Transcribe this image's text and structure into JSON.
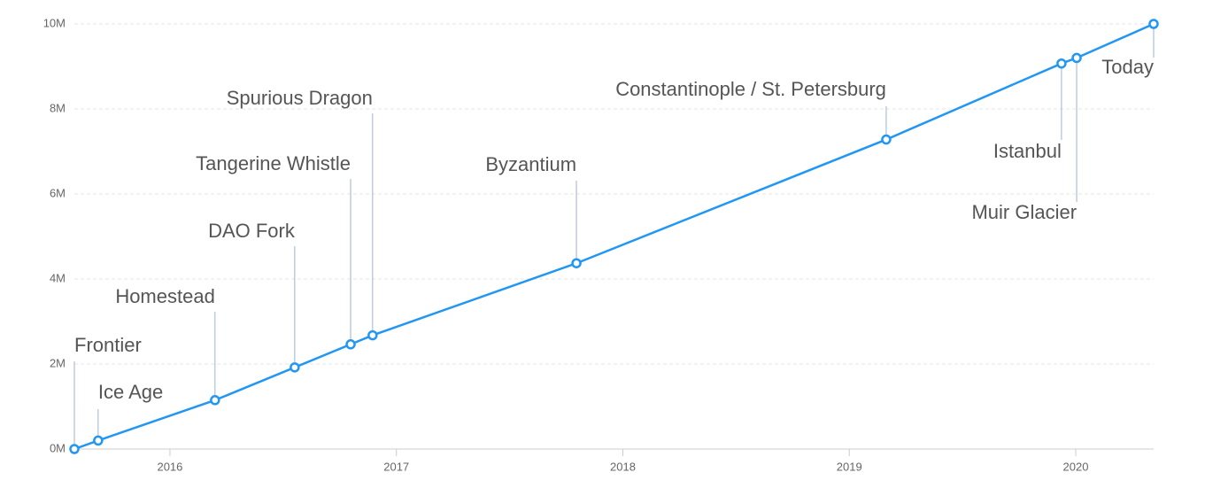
{
  "chart_data": {
    "type": "line",
    "x": [
      2015.578,
      2015.683,
      2016.199,
      2016.551,
      2016.798,
      2016.895,
      2017.795,
      2019.163,
      2019.937,
      2020.004,
      2020.344
    ],
    "values": [
      0,
      200000,
      1150000,
      1920000,
      2463000,
      2675000,
      4370000,
      7280000,
      9069000,
      9200000,
      10000000
    ],
    "point_labels": [
      "Frontier",
      "Ice Age",
      "Homestead",
      "DAO Fork",
      "Tangerine Whistle",
      "Spurious Dragon",
      "Byzantium",
      "Constantinople / St. Petersburg",
      "Istanbul",
      "Muir Glacier",
      "Today"
    ],
    "color": "#2196f3",
    "xlim": [
      2015.578,
      2020.344
    ],
    "xticks": [
      2016,
      2017,
      2018,
      2019,
      2020
    ],
    "ylim": [
      0,
      10000000
    ],
    "yticks": [
      {
        "value": 0,
        "label": "0M"
      },
      {
        "value": 2000000,
        "label": "2M"
      },
      {
        "value": 4000000,
        "label": "4M"
      },
      {
        "value": 6000000,
        "label": "6M"
      },
      {
        "value": 8000000,
        "label": "8M"
      },
      {
        "value": 10000000,
        "label": "10M"
      }
    ],
    "grid": true
  }
}
